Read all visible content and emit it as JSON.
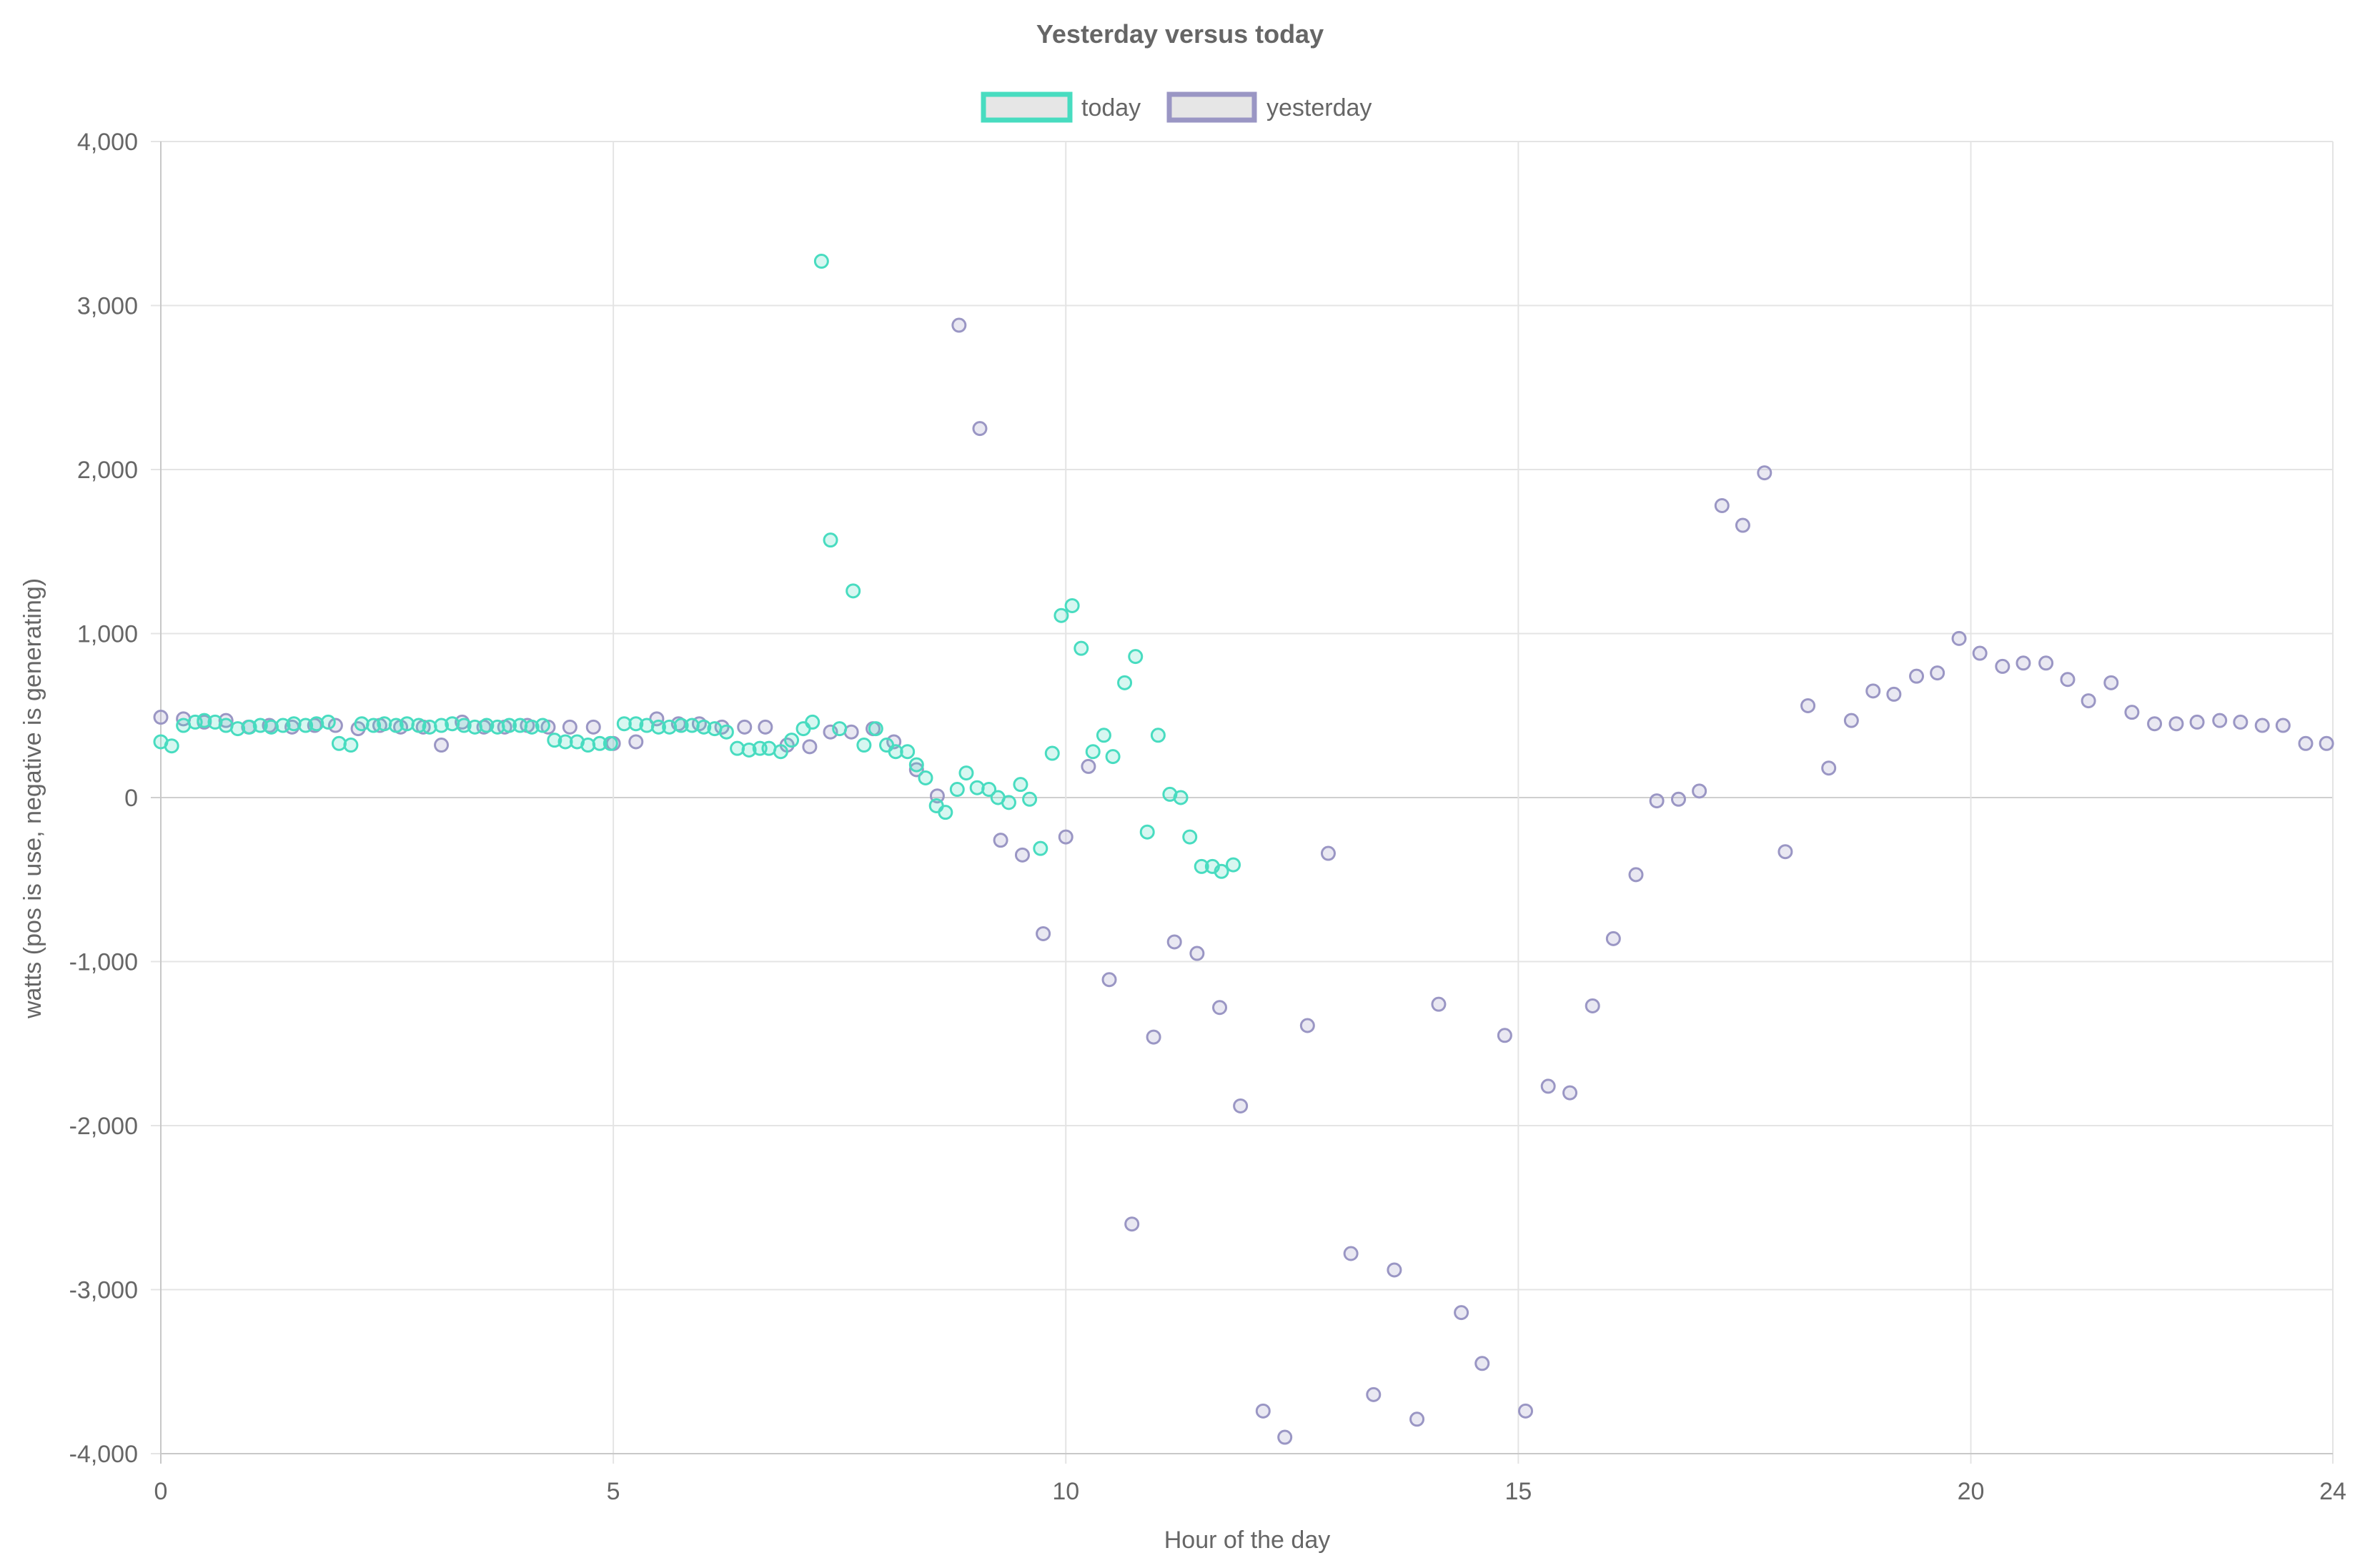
{
  "chart_data": {
    "type": "scatter",
    "title": "Yesterday versus today",
    "xlabel": "Hour of the day",
    "ylabel": "watts (pos is use, negative is generating)",
    "xlim": [
      0,
      24
    ],
    "ylim": [
      -4000,
      4000
    ],
    "x_ticks": [
      "0",
      "5",
      "10",
      "15",
      "20",
      "24"
    ],
    "y_ticks": [
      "4,000",
      "3,000",
      "2,000",
      "1,000",
      "0",
      "-1,000",
      "-2,000",
      "-3,000",
      "-4,000"
    ],
    "grid": true,
    "legend_position": "top",
    "series": [
      {
        "name": "today",
        "color": "#48dcc0",
        "points": [
          [
            0.0,
            340
          ],
          [
            0.12,
            315
          ],
          [
            0.25,
            440
          ],
          [
            0.38,
            460
          ],
          [
            0.48,
            470
          ],
          [
            0.6,
            460
          ],
          [
            0.72,
            440
          ],
          [
            0.85,
            420
          ],
          [
            0.98,
            430
          ],
          [
            1.1,
            440
          ],
          [
            1.22,
            430
          ],
          [
            1.35,
            440
          ],
          [
            1.47,
            450
          ],
          [
            1.6,
            440
          ],
          [
            1.72,
            450
          ],
          [
            1.85,
            460
          ],
          [
            1.97,
            330
          ],
          [
            2.1,
            320
          ],
          [
            2.22,
            450
          ],
          [
            2.35,
            440
          ],
          [
            2.47,
            450
          ],
          [
            2.6,
            440
          ],
          [
            2.72,
            450
          ],
          [
            2.85,
            440
          ],
          [
            2.97,
            430
          ],
          [
            3.1,
            440
          ],
          [
            3.22,
            450
          ],
          [
            3.35,
            440
          ],
          [
            3.47,
            430
          ],
          [
            3.6,
            440
          ],
          [
            3.72,
            430
          ],
          [
            3.85,
            440
          ],
          [
            3.97,
            440
          ],
          [
            4.1,
            430
          ],
          [
            4.22,
            440
          ],
          [
            4.35,
            350
          ],
          [
            4.47,
            340
          ],
          [
            4.6,
            340
          ],
          [
            4.72,
            320
          ],
          [
            4.85,
            330
          ],
          [
            4.97,
            330
          ],
          [
            5.12,
            450
          ],
          [
            5.25,
            450
          ],
          [
            5.37,
            440
          ],
          [
            5.5,
            430
          ],
          [
            5.62,
            430
          ],
          [
            5.75,
            440
          ],
          [
            5.87,
            440
          ],
          [
            6.0,
            430
          ],
          [
            6.12,
            420
          ],
          [
            6.25,
            400
          ],
          [
            6.37,
            300
          ],
          [
            6.5,
            290
          ],
          [
            6.62,
            300
          ],
          [
            6.72,
            300
          ],
          [
            6.85,
            280
          ],
          [
            6.97,
            350
          ],
          [
            7.1,
            420
          ],
          [
            7.2,
            460
          ],
          [
            7.3,
            3270
          ],
          [
            7.4,
            1570
          ],
          [
            7.5,
            420
          ],
          [
            7.65,
            1260
          ],
          [
            7.77,
            320
          ],
          [
            7.9,
            420
          ],
          [
            8.02,
            320
          ],
          [
            8.12,
            280
          ],
          [
            8.25,
            280
          ],
          [
            8.35,
            200
          ],
          [
            8.45,
            120
          ],
          [
            8.57,
            -50
          ],
          [
            8.67,
            -90
          ],
          [
            8.8,
            50
          ],
          [
            8.9,
            150
          ],
          [
            9.02,
            60
          ],
          [
            9.15,
            50
          ],
          [
            9.25,
            0
          ],
          [
            9.37,
            -30
          ],
          [
            9.5,
            80
          ],
          [
            9.6,
            -10
          ],
          [
            9.72,
            -310
          ],
          [
            9.85,
            270
          ],
          [
            9.95,
            1110
          ],
          [
            10.07,
            1170
          ],
          [
            10.17,
            910
          ],
          [
            10.3,
            280
          ],
          [
            10.42,
            380
          ],
          [
            10.52,
            250
          ],
          [
            10.65,
            700
          ],
          [
            10.77,
            860
          ],
          [
            10.9,
            -210
          ],
          [
            11.02,
            380
          ],
          [
            11.15,
            20
          ],
          [
            11.27,
            0
          ],
          [
            11.37,
            -240
          ],
          [
            11.5,
            -420
          ],
          [
            11.62,
            -420
          ],
          [
            11.72,
            -450
          ],
          [
            11.85,
            -410
          ]
        ]
      },
      {
        "name": "yesterday",
        "color": "#9a96c4",
        "points": [
          [
            0.0,
            490
          ],
          [
            0.25,
            480
          ],
          [
            0.48,
            460
          ],
          [
            0.72,
            470
          ],
          [
            0.97,
            430
          ],
          [
            1.2,
            440
          ],
          [
            1.45,
            430
          ],
          [
            1.7,
            440
          ],
          [
            1.93,
            440
          ],
          [
            2.18,
            420
          ],
          [
            2.42,
            440
          ],
          [
            2.65,
            430
          ],
          [
            2.9,
            430
          ],
          [
            3.1,
            320
          ],
          [
            3.33,
            460
          ],
          [
            3.57,
            430
          ],
          [
            3.8,
            430
          ],
          [
            4.05,
            440
          ],
          [
            4.28,
            430
          ],
          [
            4.52,
            430
          ],
          [
            4.78,
            430
          ],
          [
            5.0,
            330
          ],
          [
            5.25,
            340
          ],
          [
            5.48,
            480
          ],
          [
            5.72,
            450
          ],
          [
            5.95,
            450
          ],
          [
            6.2,
            430
          ],
          [
            6.45,
            430
          ],
          [
            6.68,
            430
          ],
          [
            6.92,
            320
          ],
          [
            7.17,
            310
          ],
          [
            7.4,
            400
          ],
          [
            7.63,
            400
          ],
          [
            7.87,
            420
          ],
          [
            8.1,
            340
          ],
          [
            8.35,
            170
          ],
          [
            8.58,
            10
          ],
          [
            8.82,
            2880
          ],
          [
            9.05,
            2250
          ],
          [
            9.28,
            -260
          ],
          [
            9.52,
            -350
          ],
          [
            9.75,
            -830
          ],
          [
            10.0,
            -240
          ],
          [
            10.25,
            190
          ],
          [
            10.48,
            -1110
          ],
          [
            10.73,
            -2600
          ],
          [
            10.97,
            -1460
          ],
          [
            11.2,
            -880
          ],
          [
            11.45,
            -950
          ],
          [
            11.7,
            -1280
          ],
          [
            11.93,
            -1880
          ],
          [
            12.18,
            -3740
          ],
          [
            12.42,
            -3900
          ],
          [
            12.67,
            -1390
          ],
          [
            12.9,
            -340
          ],
          [
            13.15,
            -2780
          ],
          [
            13.4,
            -3640
          ],
          [
            13.63,
            -2880
          ],
          [
            13.88,
            -3790
          ],
          [
            14.12,
            -1260
          ],
          [
            14.37,
            -3140
          ],
          [
            14.6,
            -3450
          ],
          [
            14.85,
            -1450
          ],
          [
            15.08,
            -3740
          ],
          [
            15.33,
            -1760
          ],
          [
            15.57,
            -1800
          ],
          [
            15.82,
            -1270
          ],
          [
            16.05,
            -860
          ],
          [
            16.3,
            -470
          ],
          [
            16.53,
            -20
          ],
          [
            16.77,
            -10
          ],
          [
            17.0,
            40
          ],
          [
            17.25,
            1780
          ],
          [
            17.48,
            1660
          ],
          [
            17.72,
            1980
          ],
          [
            17.95,
            -330
          ],
          [
            18.2,
            560
          ],
          [
            18.43,
            180
          ],
          [
            18.68,
            470
          ],
          [
            18.92,
            650
          ],
          [
            19.15,
            630
          ],
          [
            19.4,
            740
          ],
          [
            19.63,
            760
          ],
          [
            19.87,
            970
          ],
          [
            20.1,
            880
          ],
          [
            20.35,
            800
          ],
          [
            20.58,
            820
          ],
          [
            20.83,
            820
          ],
          [
            21.07,
            720
          ],
          [
            21.3,
            590
          ],
          [
            21.55,
            700
          ],
          [
            21.78,
            520
          ],
          [
            22.03,
            450
          ],
          [
            22.27,
            450
          ],
          [
            22.5,
            460
          ],
          [
            22.75,
            470
          ],
          [
            22.98,
            460
          ],
          [
            23.22,
            440
          ],
          [
            23.45,
            440
          ],
          [
            23.7,
            330
          ],
          [
            23.93,
            330
          ]
        ]
      }
    ]
  }
}
